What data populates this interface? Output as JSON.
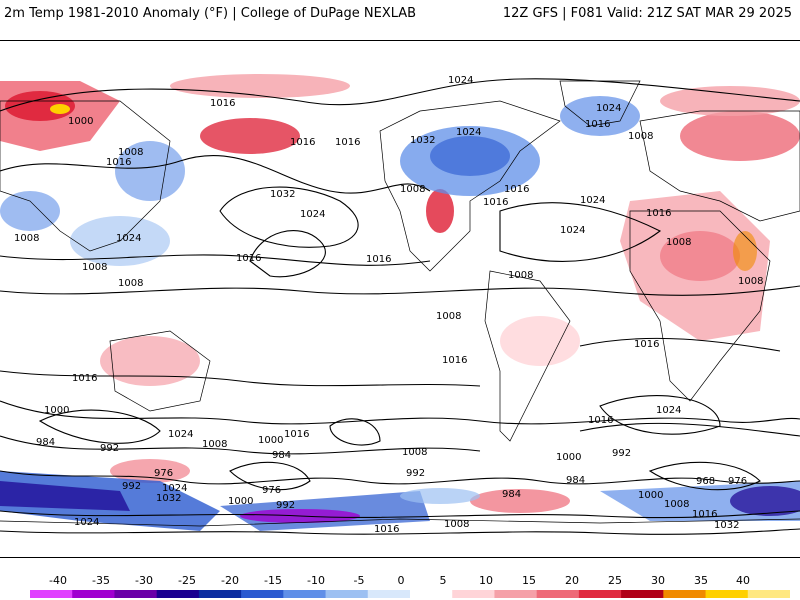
{
  "header": {
    "title_left": "2m Temp 1981-2010 Anomaly (°F) | College of DuPage NEXLAB",
    "title_right": "12Z GFS | F081 Valid: 21Z SAT MAR 29 2025"
  },
  "colors": {
    "land_outline": "#000000",
    "isobar": "#000000",
    "background": "#ffffff"
  },
  "isobar_labels": [
    "1024",
    "1016",
    "1000",
    "1008",
    "1016",
    "1016",
    "1024",
    "1032",
    "1024",
    "1016",
    "1008",
    "1016",
    "1008",
    "1032",
    "1024",
    "1016",
    "1024",
    "1016",
    "1024",
    "1016",
    "1008",
    "1024",
    "1008",
    "1008",
    "1016",
    "1008",
    "1016",
    "1008",
    "1008",
    "1008",
    "1016",
    "1016",
    "1024",
    "1016",
    "1000",
    "1016",
    "1008",
    "1000",
    "992",
    "984",
    "976",
    "1024",
    "1032",
    "984",
    "992",
    "976",
    "1000",
    "992",
    "1008",
    "992",
    "984",
    "1000",
    "984",
    "968",
    "976",
    "992",
    "1024",
    "1016",
    "1032",
    "1008",
    "1000",
    "1016",
    "1008",
    "1016",
    "1024"
  ],
  "colorbar": {
    "labels": [
      "-40",
      "-35",
      "-30",
      "-25",
      "-20",
      "-15",
      "-10",
      "-5",
      "0",
      "5",
      "10",
      "15",
      "20",
      "25",
      "30",
      "35",
      "40"
    ],
    "colors": [
      "#e040ff",
      "#a000d0",
      "#6a00a8",
      "#1a0090",
      "#0a2ca0",
      "#2a5ad0",
      "#5f8fe8",
      "#9cc0f2",
      "#d8e8fb",
      "#ffffff",
      "#ffd4d8",
      "#f5a0a8",
      "#ee6a78",
      "#e02a40",
      "#b00018",
      "#f08a00",
      "#ffd000",
      "#ffe880"
    ]
  }
}
